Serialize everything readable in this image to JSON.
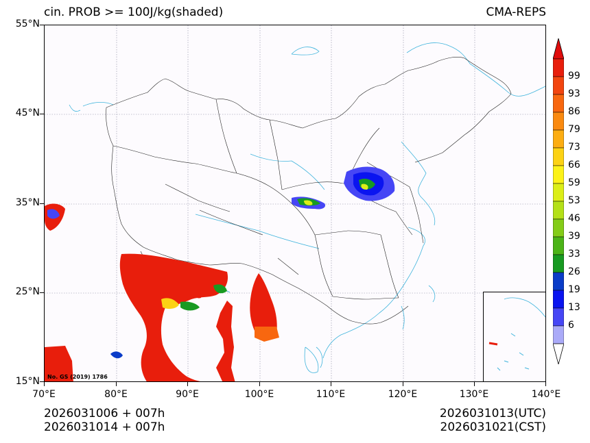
{
  "header": {
    "title_left": "cin. PROB >= 100J/kg(shaded)",
    "title_right": "CMA-REPS"
  },
  "axes": {
    "y_labels": [
      "55°N",
      "45°N",
      "35°N",
      "25°N",
      "15°N"
    ],
    "x_labels": [
      "70°E",
      "80°E",
      "90°E",
      "100°E",
      "110°E",
      "120°E",
      "130°E",
      "140°E"
    ]
  },
  "map": {
    "credit": "No. GS (2019) 1786"
  },
  "colorbar": {
    "labels": [
      "99",
      "93",
      "86",
      "79",
      "73",
      "66",
      "59",
      "53",
      "46",
      "39",
      "33",
      "26",
      "19",
      "13",
      "6"
    ],
    "colors": [
      "#e81e0c",
      "#f2450f",
      "#f8670f",
      "#fa8a10",
      "#fcad12",
      "#fcd214",
      "#fcf218",
      "#dcee18",
      "#b4e018",
      "#84cc18",
      "#4cb418",
      "#189a22",
      "#0a3cc8",
      "#0a14f0",
      "#4646f5",
      "#aaaaf8"
    ],
    "top_arrow_color": "#e00c0c"
  },
  "footer": {
    "init_utc": "2026031006  +  007h",
    "init_cst": "2026031014  +  007h",
    "valid_utc": "2026031013(UTC)",
    "valid_cst": "2026031021(CST)"
  }
}
